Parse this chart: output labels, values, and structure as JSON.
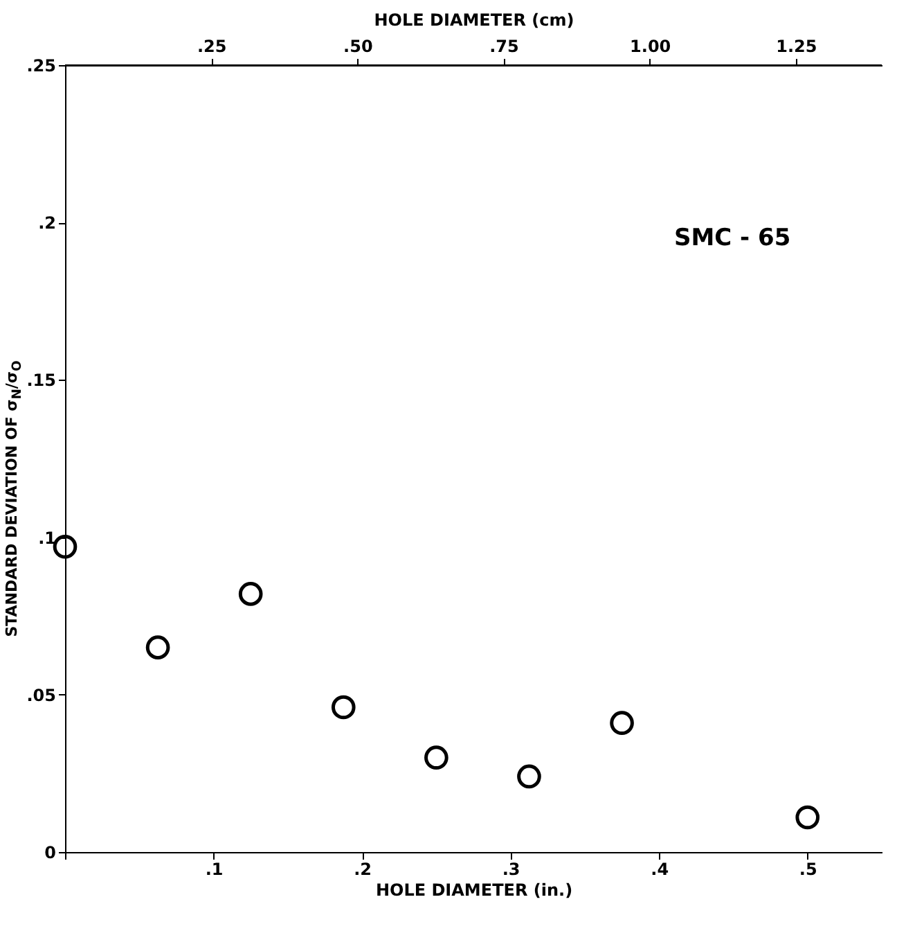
{
  "chart_data": {
    "type": "scatter",
    "xlabel": "HOLE DIAMETER (in.)",
    "x2label": "HOLE DIAMETER (cm)",
    "ylabel": "STANDARD DEVIATION OF σ$_{N}$/σ$_{O}$",
    "annotations": [
      "SMC - 65"
    ],
    "x": [
      0,
      0.0625,
      0.125,
      0.1875,
      0.25,
      0.3125,
      0.375,
      0.5
    ],
    "series": [
      {
        "color": "#000000",
        "values": [
          0.097,
          0.065,
          0.082,
          0.046,
          0.03,
          0.024,
          0.041,
          0.011
        ]
      }
    ],
    "xlim": [
      0,
      0.55
    ],
    "xticks": [
      {
        "value": 0,
        "label": null
      },
      {
        "value": 0.1,
        "label": ".1"
      },
      {
        "value": 0.2,
        "label": ".2"
      },
      {
        "value": 0.3,
        "label": ".3"
      },
      {
        "value": 0.4,
        "label": ".4"
      },
      {
        "value": 0.5,
        "label": ".5"
      }
    ],
    "x2lim": [
      0,
      1.397
    ],
    "x2ticks": [
      {
        "value": 0.25,
        "label": ".25"
      },
      {
        "value": 0.5,
        "label": ".50"
      },
      {
        "value": 0.75,
        "label": ".75"
      },
      {
        "value": 1.0,
        "label": "1.00"
      },
      {
        "value": 1.25,
        "label": "1.25"
      }
    ],
    "ylim": [
      0,
      0.25
    ],
    "yticks": [
      0,
      {
        "value": 0.05,
        "label": ".05"
      },
      {
        "value": 0.1,
        "label": ".1"
      },
      {
        "value": 0.15,
        "label": ".15"
      },
      {
        "value": 0.2,
        "label": ".2"
      },
      {
        "value": 0.25,
        "label": ".25"
      }
    ],
    "grid": false,
    "legend": false,
    "marker": "circle"
  }
}
